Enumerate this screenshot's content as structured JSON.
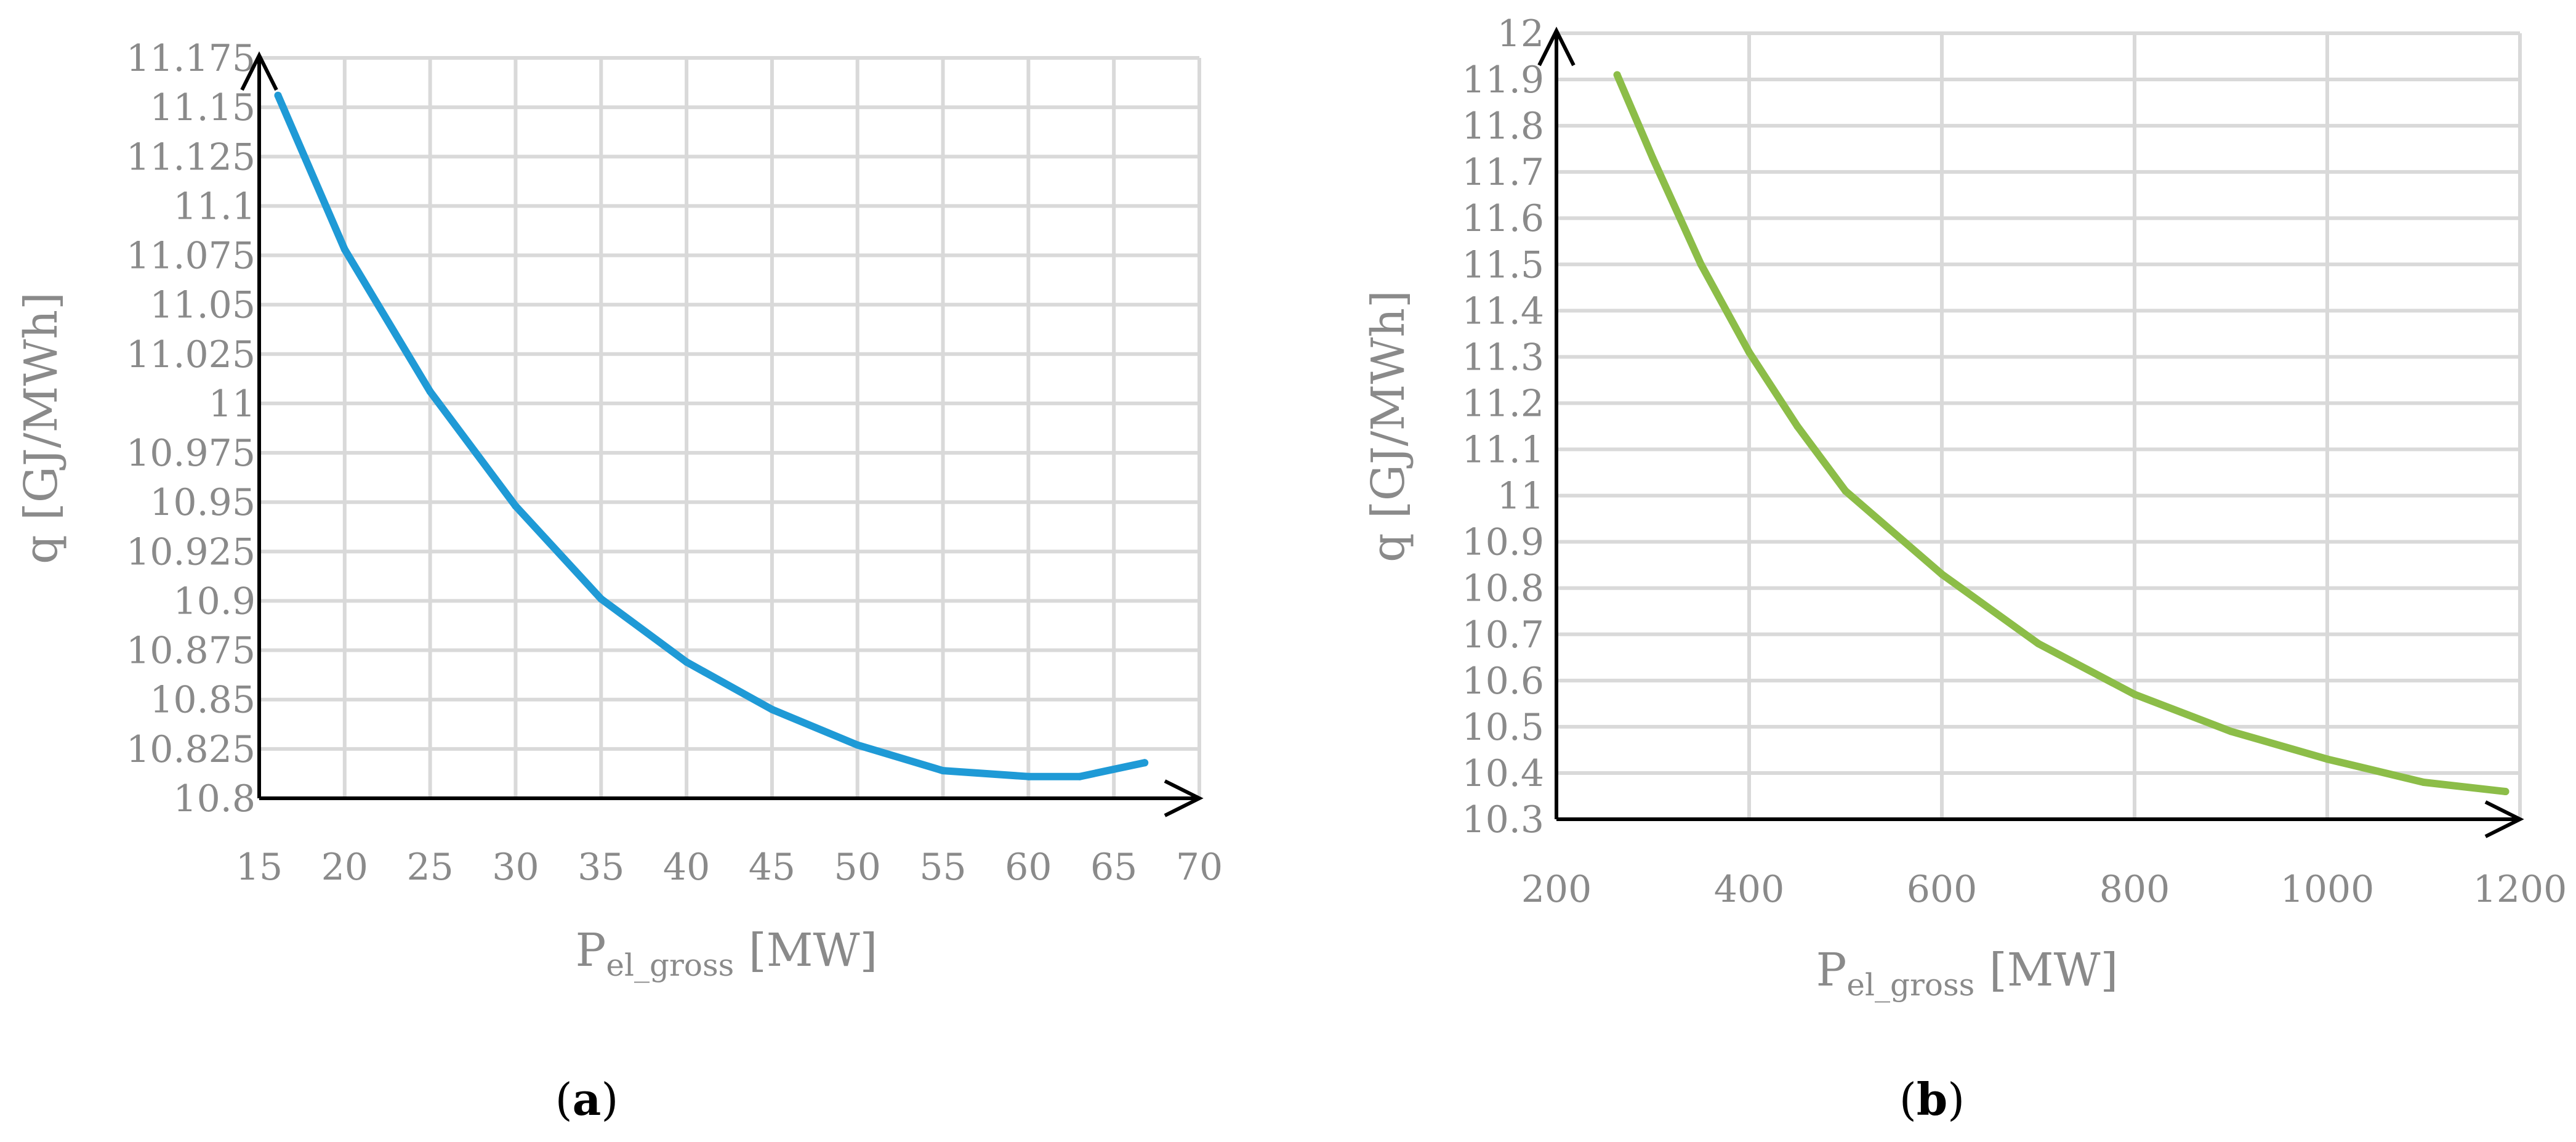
{
  "figure": {
    "panel_a_label": "a",
    "panel_b_label": "b"
  },
  "chart_data": [
    {
      "type": "line",
      "panel": "a",
      "xlabel": {
        "main": "P",
        "subscript": "el_gross",
        "unit": " [MW]"
      },
      "ylabel": "q [GJ/MWh]",
      "xlim": [
        15,
        70
      ],
      "ylim": [
        10.8,
        11.175
      ],
      "x_ticks": [
        "15",
        "20",
        "25",
        "30",
        "35",
        "40",
        "45",
        "50",
        "55",
        "60",
        "65",
        "70"
      ],
      "y_ticks": [
        "10.8",
        "10.825",
        "10.85",
        "10.875",
        "10.9",
        "10.925",
        "10.95",
        "10.975",
        "11",
        "11.025",
        "11.05",
        "11.075",
        "11.1",
        "11.125",
        "11.15",
        "11.175"
      ],
      "grid": true,
      "series": [
        {
          "color": "#1f9ad6",
          "x": [
            16.1,
            20,
            25,
            30,
            35,
            40,
            45,
            50,
            55,
            60,
            63,
            66.8
          ],
          "y": [
            11.156,
            11.078,
            11.006,
            10.948,
            10.901,
            10.869,
            10.845,
            10.827,
            10.814,
            10.811,
            10.811,
            10.818
          ]
        }
      ]
    },
    {
      "type": "line",
      "panel": "b",
      "xlabel": {
        "main": "P",
        "subscript": "el_gross",
        "unit": " [MW]"
      },
      "ylabel": "q [GJ/MWh]",
      "xlim": [
        200,
        1200
      ],
      "ylim": [
        10.3,
        12
      ],
      "x_ticks": [
        "200",
        "400",
        "600",
        "800",
        "1000",
        "1200"
      ],
      "y_ticks": [
        "10.3",
        "10.4",
        "10.5",
        "10.6",
        "10.7",
        "10.8",
        "10.9",
        "11",
        "11.1",
        "11.2",
        "11.3",
        "11.4",
        "11.5",
        "11.6",
        "11.7",
        "11.8",
        "11.9",
        "12"
      ],
      "grid": true,
      "series": [
        {
          "color": "#8cbd48",
          "x": [
            263,
            300,
            350,
            400,
            450,
            500,
            600,
            700,
            800,
            900,
            1000,
            1100,
            1185
          ],
          "y": [
            11.91,
            11.73,
            11.5,
            11.31,
            11.15,
            11.01,
            10.83,
            10.68,
            10.57,
            10.49,
            10.43,
            10.38,
            10.36
          ]
        }
      ]
    }
  ]
}
